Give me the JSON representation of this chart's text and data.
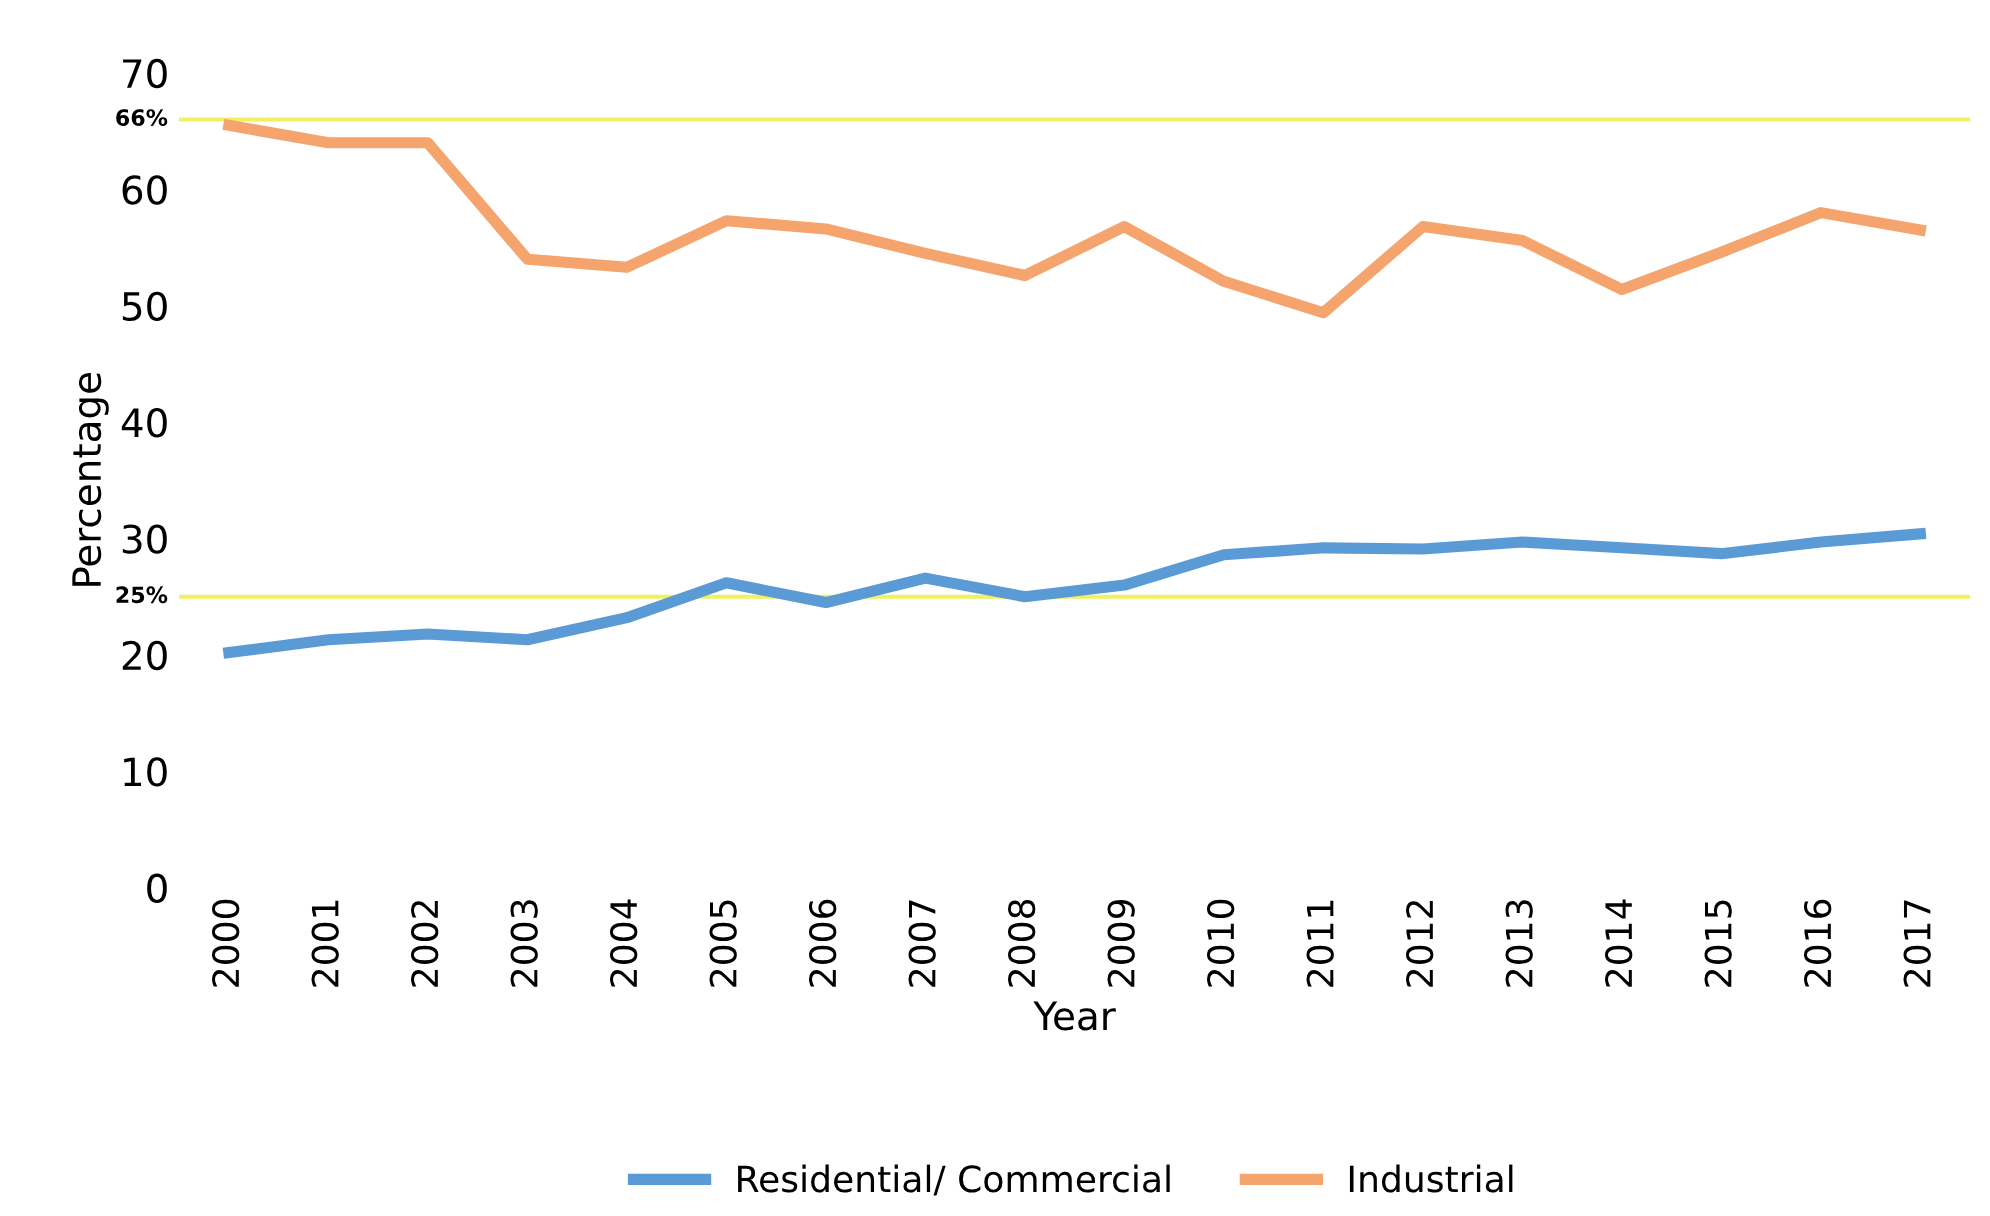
{
  "chart_data": {
    "type": "line",
    "xlabel": "Year",
    "ylabel": "Percentage",
    "categories": [
      "2000",
      "2001",
      "2002",
      "2003",
      "2004",
      "2005",
      "2006",
      "2007",
      "2008",
      "2009",
      "2010",
      "2011",
      "2012",
      "2013",
      "2014",
      "2015",
      "2016",
      "2017"
    ],
    "series": [
      {
        "name": "Residential/ Commercial",
        "color": "#5b9bd5",
        "values": [
          20.2,
          21.3,
          21.8,
          21.3,
          23.2,
          26.2,
          24.5,
          26.6,
          25,
          26,
          28.6,
          29.2,
          29.1,
          29.7,
          29.2,
          28.7,
          29.7,
          30.4
        ]
      },
      {
        "name": "Industrial",
        "color": "#f4a46c",
        "values": [
          65.5,
          64,
          64,
          54,
          53.3,
          57.3,
          56.6,
          54.5,
          52.6,
          56.8,
          52.1,
          49.4,
          56.8,
          55.6,
          51.4,
          54.6,
          58,
          56.5
        ]
      }
    ],
    "ylim": [
      0,
      70
    ],
    "yticks": [
      0,
      10,
      20,
      30,
      40,
      50,
      60,
      70
    ],
    "ref_lines": [
      {
        "axis": "y",
        "value": 66,
        "label": "66%",
        "color": "#f0f060"
      },
      {
        "axis": "y",
        "value": 25,
        "label": "25%",
        "color": "#f0f060"
      }
    ],
    "grid": false,
    "legend": "bottom",
    "marker": "none",
    "line_style": "solid"
  }
}
